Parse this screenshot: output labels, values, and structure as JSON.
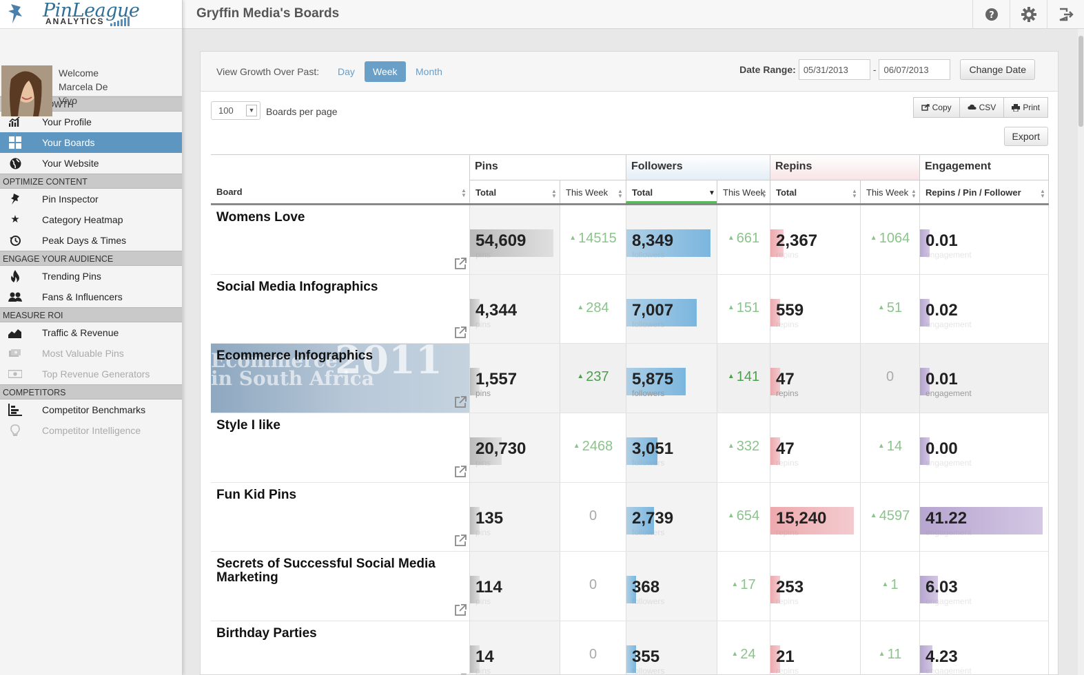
{
  "app": {
    "brand_script": "PinLeague",
    "brand_sub": "ANALYTICS"
  },
  "user": {
    "welcome": "Welcome Marcela De Vivo"
  },
  "sidebar": {
    "sections": [
      {
        "title": "TRACK GROWTH",
        "items": [
          {
            "label": "Your Profile",
            "icon": "chart-icon"
          },
          {
            "label": "Your Boards",
            "icon": "grid-icon",
            "active": true
          },
          {
            "label": "Your Website",
            "icon": "globe-icon"
          }
        ]
      },
      {
        "title": "OPTIMIZE CONTENT",
        "items": [
          {
            "label": "Pin Inspector",
            "icon": "pin-icon"
          },
          {
            "label": "Category Heatmap",
            "icon": "star-icon"
          },
          {
            "label": "Peak Days & Times",
            "icon": "clock-icon"
          }
        ]
      },
      {
        "title": "ENGAGE YOUR AUDIENCE",
        "items": [
          {
            "label": "Trending Pins",
            "icon": "flame-icon"
          },
          {
            "label": "Fans & Influencers",
            "icon": "users-icon"
          }
        ]
      },
      {
        "title": "MEASURE ROI",
        "items": [
          {
            "label": "Traffic & Revenue",
            "icon": "area-chart-icon"
          },
          {
            "label": "Most Valuable Pins",
            "icon": "money-icon",
            "disabled": true
          },
          {
            "label": "Top Revenue Generators",
            "icon": "cash-icon",
            "disabled": true
          }
        ]
      },
      {
        "title": "COMPETITORS",
        "items": [
          {
            "label": "Competitor Benchmarks",
            "icon": "bar-chart-icon"
          },
          {
            "label": "Competitor Intelligence",
            "icon": "lightbulb-icon",
            "disabled": true
          }
        ]
      }
    ]
  },
  "header": {
    "title": "Gryffin Media's Boards"
  },
  "growth": {
    "label": "View Growth Over Past:",
    "periods": [
      "Day",
      "Week",
      "Month"
    ],
    "active_period": "Week",
    "date_range_label": "Date Range:",
    "date_from": "05/31/2013",
    "date_to": "06/07/2013",
    "dash": "-",
    "change_date": "Change Date"
  },
  "controls": {
    "per_page_value": "100",
    "per_page_label": "Boards per page",
    "copy": "Copy",
    "csv": "CSV",
    "print": "Print",
    "export": "Export"
  },
  "table": {
    "group_headers": {
      "pins": "Pins",
      "followers": "Followers",
      "repins": "Repins",
      "engagement": "Engagement"
    },
    "col_board": "Board",
    "col_total": "Total",
    "col_this_week": "This Week",
    "col_engagement": "Repins / Pin / Follower",
    "sub_labels": {
      "pins": "pins",
      "followers": "followers",
      "repins": "repins",
      "engagement": "engagement"
    },
    "rows": [
      {
        "board": "Womens Love",
        "pins": "54,609",
        "pins_week": "14515",
        "followers": "8,349",
        "followers_week": "661",
        "repins": "2,367",
        "repins_week": "1064",
        "engagement": "0.01"
      },
      {
        "board": "Social Media Infographics",
        "pins": "4,344",
        "pins_week": "284",
        "followers": "7,007",
        "followers_week": "151",
        "repins": "559",
        "repins_week": "51",
        "engagement": "0.02"
      },
      {
        "board": "Ecommerce Infographics",
        "pins": "1,557",
        "pins_week": "237",
        "followers": "5,875",
        "followers_week": "141",
        "repins": "47",
        "repins_week": "0",
        "engagement": "0.01",
        "bg_text_1": "Ecommerce",
        "bg_text_2": "in South Africa",
        "bg_year": "2011"
      },
      {
        "board": "Style I like",
        "pins": "20,730",
        "pins_week": "2468",
        "followers": "3,051",
        "followers_week": "332",
        "repins": "47",
        "repins_week": "14",
        "engagement": "0.00"
      },
      {
        "board": "Fun Kid Pins",
        "pins": "135",
        "pins_week": "0",
        "followers": "2,739",
        "followers_week": "654",
        "repins": "15,240",
        "repins_week": "4597",
        "engagement": "41.22"
      },
      {
        "board": "Secrets of Successful Social Media Marketing",
        "pins": "114",
        "pins_week": "0",
        "followers": "368",
        "followers_week": "17",
        "repins": "253",
        "repins_week": "1",
        "engagement": "6.03"
      },
      {
        "board": "Birthday Parties",
        "pins": "14",
        "pins_week": "0",
        "followers": "355",
        "followers_week": "24",
        "repins": "21",
        "repins_week": "11",
        "engagement": "4.23"
      }
    ]
  },
  "colors": {
    "accent": "#5d97c1",
    "pins_bar": "#b0b0b0",
    "followers_bar": "#7ab4dc",
    "repins_bar": "#eba0a5",
    "engagement_bar": "#b4a0cc",
    "positive": "#5aa85a"
  }
}
